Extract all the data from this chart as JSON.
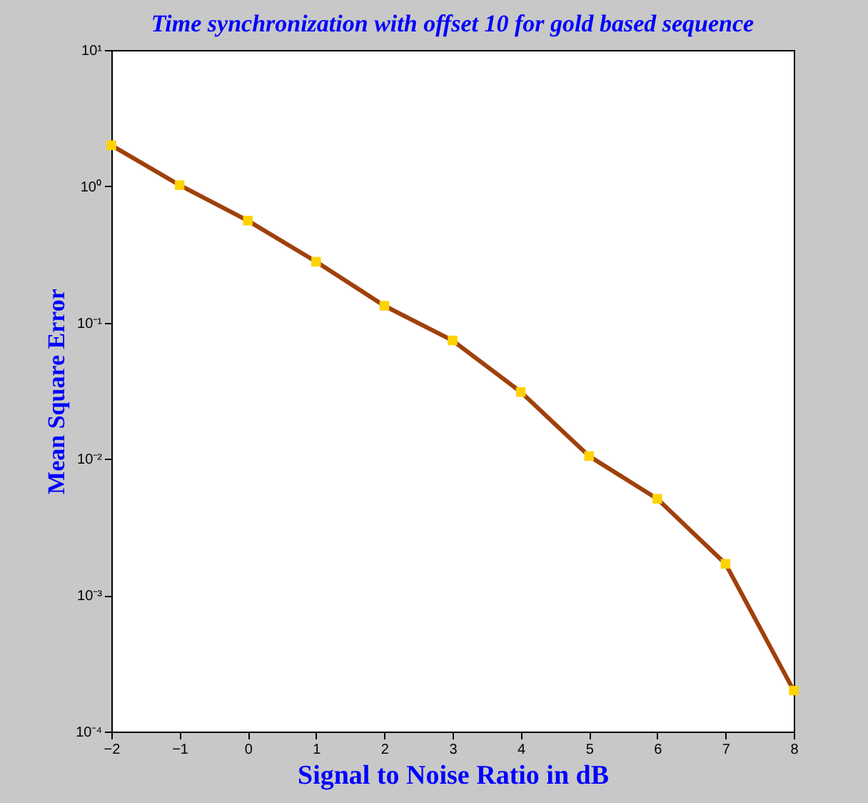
{
  "chart_data": {
    "type": "line",
    "title": "Time synchronization with offset 10 for gold based sequence",
    "xlabel": "Signal to Noise Ratio in dB",
    "ylabel": "Mean Square Error",
    "x": [
      -2,
      -1,
      0,
      1,
      2,
      3,
      4,
      5,
      6,
      7,
      8
    ],
    "series": [
      {
        "color": "#a0400c",
        "colors": [
          "#ffd200",
          "#ffd200",
          "#ffd200",
          "#ffd200",
          "#ffd200",
          "#ffd200",
          "#ffd200",
          "#ffd200",
          "#ffd200",
          "#ffd200",
          "#ffd200"
        ],
        "values": [
          2.0,
          1.02,
          0.56,
          0.28,
          0.133,
          0.074,
          0.031,
          0.0105,
          0.0051,
          0.0017,
          0.0002
        ]
      }
    ],
    "log": true,
    "grid": false,
    "marker": "square",
    "line_style": "solid",
    "xlim": [
      -2,
      8
    ],
    "xticks": [
      -2,
      -1,
      0,
      1,
      2,
      3,
      4,
      5,
      6,
      7,
      8
    ],
    "ylim": [
      0.0001,
      10
    ],
    "yticks": [
      {
        "value": 0.0001,
        "label": "10⁻⁴"
      },
      {
        "value": 0.001,
        "label": "10⁻³"
      },
      {
        "value": 0.01,
        "label": "10⁻²"
      },
      {
        "value": 0.1,
        "label": "10⁻¹"
      },
      {
        "value": 1,
        "label": "10⁰"
      },
      {
        "value": 10,
        "label": "10¹"
      }
    ]
  }
}
